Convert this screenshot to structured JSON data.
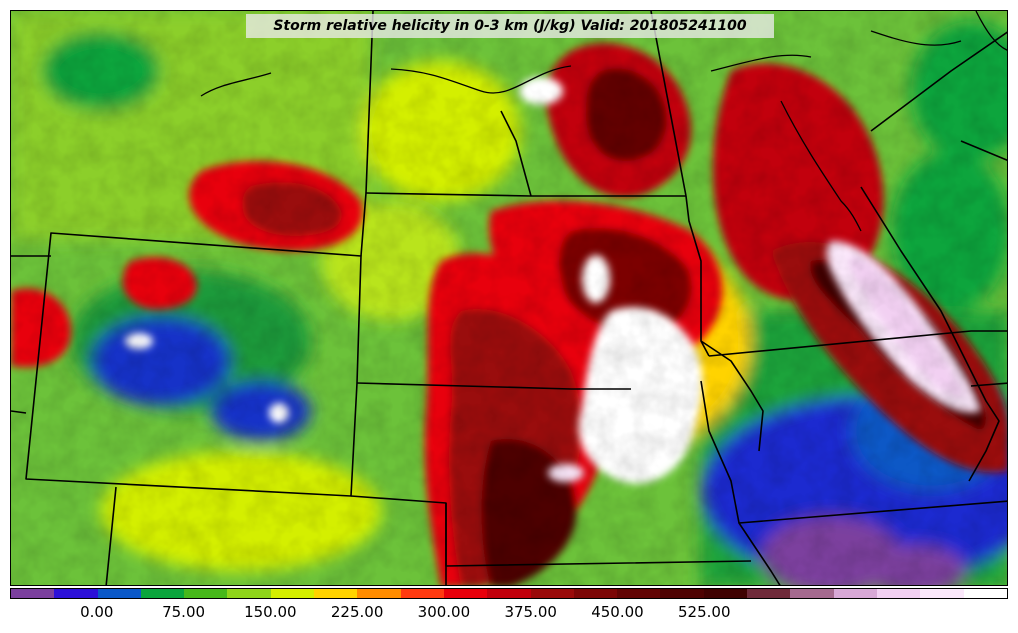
{
  "title": "Storm relative helicity in 0-3 km (J/kg) Valid: 201805241100",
  "colorbar": {
    "colors": [
      "#7b3f9e",
      "#2c10d8",
      "#0a58c8",
      "#0aa53c",
      "#46b81a",
      "#8fd41a",
      "#d4ef00",
      "#ffd300",
      "#ff8c00",
      "#ff3a10",
      "#e8000b",
      "#c2000c",
      "#9a0a0a",
      "#7c0606",
      "#620404",
      "#4e0303",
      "#3f0202",
      "#6f2a3a",
      "#a56a8f",
      "#d8a8d6",
      "#f2d0f2",
      "#fbe8fb",
      "#ffffff"
    ],
    "ticks": [
      "0.00",
      "75.00",
      "150.00",
      "225.00",
      "300.00",
      "375.00",
      "450.00",
      "525.00"
    ]
  }
}
